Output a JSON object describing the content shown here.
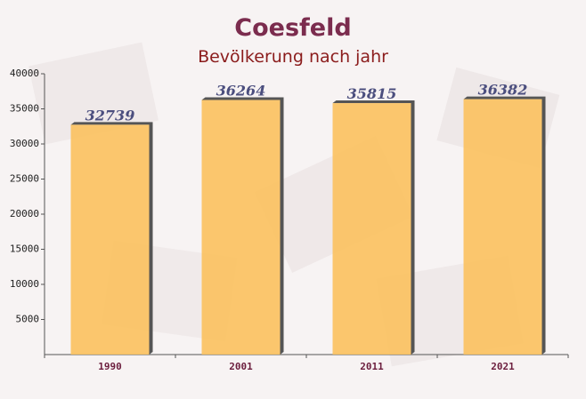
{
  "chart_data": {
    "type": "bar",
    "title": "Coesfeld",
    "subtitle": "Bevölkerung nach jahr",
    "categories": [
      "1990",
      "2001",
      "2011",
      "2021"
    ],
    "values": [
      32739,
      36264,
      35815,
      36382
    ],
    "color": "#fbc15e",
    "ylim": [
      0,
      40000
    ],
    "yticks": [
      5000,
      10000,
      15000,
      20000,
      25000,
      30000,
      35000,
      40000
    ]
  }
}
